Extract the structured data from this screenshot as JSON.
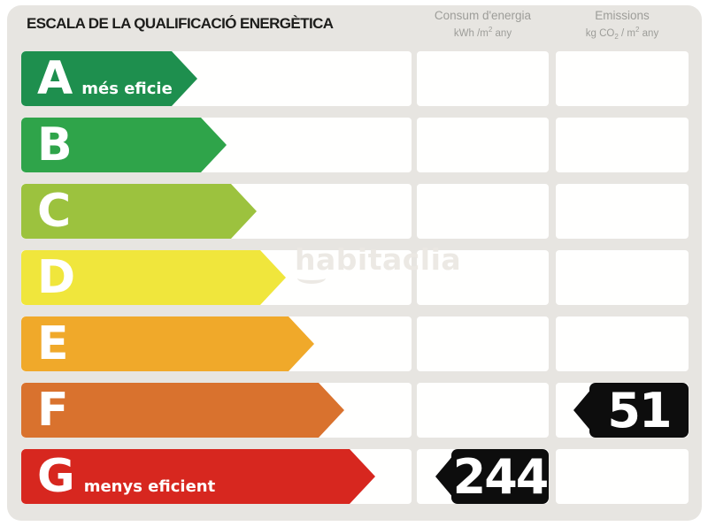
{
  "title": "ESCALA DE LA QUALIFICACIÓ ENERGÈTICA",
  "watermark": "habitaclia",
  "columns": {
    "consum": {
      "title": "Consum d'energia",
      "unit": {
        "pre": "kWh /m",
        "sup": "2",
        "post": " any"
      }
    },
    "emissions": {
      "title": "Emissions",
      "unit": {
        "pre": "kg CO",
        "sub": "2",
        "mid": " / m",
        "sup": "2",
        "post": " any"
      }
    }
  },
  "rows": [
    {
      "letter": "A",
      "label": "més eficient",
      "color": "#1e8f4e",
      "arrow_width": 199
    },
    {
      "letter": "B",
      "label": "",
      "color": "#2fa44a",
      "arrow_width": 232
    },
    {
      "letter": "C",
      "label": "",
      "color": "#9cc23e",
      "arrow_width": 266
    },
    {
      "letter": "D",
      "label": "",
      "color": "#f0e63c",
      "arrow_width": 299
    },
    {
      "letter": "E",
      "label": "",
      "color": "#f0a92a",
      "arrow_width": 331
    },
    {
      "letter": "F",
      "label": "",
      "color": "#d9722e",
      "arrow_width": 365
    },
    {
      "letter": "G",
      "label": "menys eficient",
      "color": "#d7271f",
      "arrow_width": 400
    }
  ],
  "indicators": [
    {
      "value": "244",
      "row": "G",
      "column": "consum"
    },
    {
      "value": "51",
      "row": "F",
      "column": "emissions"
    }
  ],
  "colors": {
    "panel_bg": "#e7e5e1",
    "cell_bg": "#fffffe",
    "indicator_bg": "#0d0d0d",
    "title_text": "#1d1d1b",
    "header_text": "#9d9d99"
  },
  "chart_data": {
    "type": "bar",
    "title": "ESCALA DE LA QUALIFICACIÓ ENERGÈTICA",
    "categories": [
      "A",
      "B",
      "C",
      "D",
      "E",
      "F",
      "G"
    ],
    "scale_labels": {
      "A": "més eficient",
      "G": "menys eficient"
    },
    "series": [
      {
        "name": "Consum d'energia (kWh/m2 any)",
        "rating": "G",
        "value": 244
      },
      {
        "name": "Emissions (kg CO2/m2 any)",
        "rating": "F",
        "value": 51
      }
    ],
    "legend_position": "top",
    "grid": false
  }
}
